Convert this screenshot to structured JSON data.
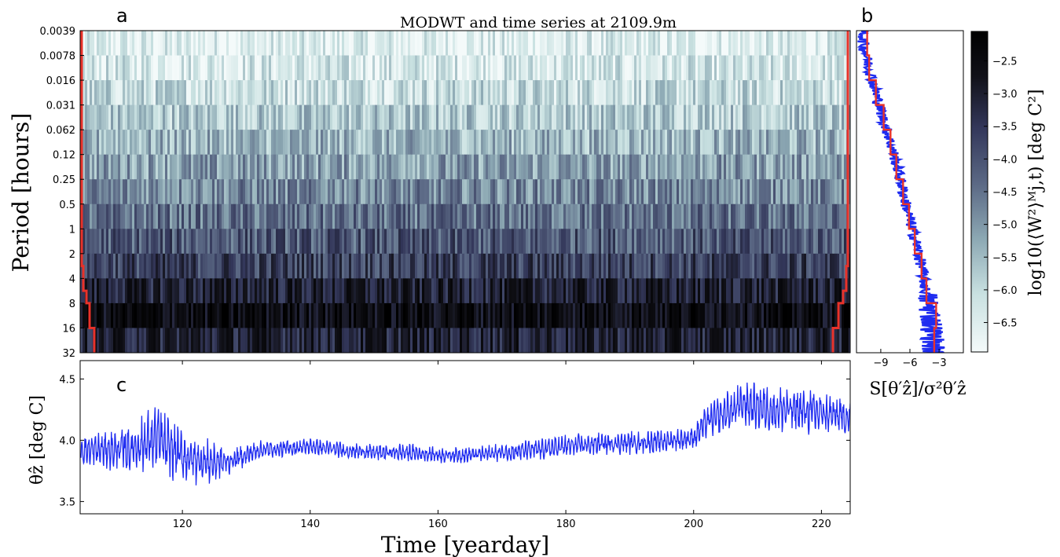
{
  "figure": {
    "title": "MODWT and time series at 2109.9m",
    "panel_labels": [
      "a",
      "b",
      "c"
    ]
  },
  "chart_data": [
    {
      "panel": "a",
      "type": "heatmap",
      "title": "MODWT and time series at 2109.9m",
      "ylabel": "Period [hours]",
      "yticks": [
        "0.0039",
        "0.0078",
        "0.016",
        "0.031",
        "0.062",
        "0.12",
        "0.25",
        "0.5",
        "1",
        "2",
        "4",
        "8",
        "16",
        "32"
      ],
      "xlim": [
        104,
        224.5
      ],
      "band_mean_log_power": [
        -6.6,
        -6.4,
        -6.1,
        -5.8,
        -5.5,
        -5.2,
        -4.9,
        -4.6,
        -4.2,
        -3.8,
        -3.2,
        -2.6,
        -3.2
      ],
      "cone_of_influence_color": "#e8322a",
      "colormap": [
        "#f4fafa",
        "#c9e1e1",
        "#8da9b4",
        "#5c6a86",
        "#33375a",
        "#111118",
        "#000000"
      ]
    },
    {
      "panel": "b",
      "type": "line",
      "xlabel": "S[θ′ẑ]/σ²θ′ẑ",
      "xticks": [
        "-9",
        "-6",
        "-3"
      ],
      "xlim": [
        -11.5,
        -0.5
      ],
      "series": [
        {
          "color": "#1f2cf0",
          "x_at_band": [
            -10.8,
            -10.2,
            -9.5,
            -8.8,
            -8.0,
            -7.3,
            -6.7,
            -6.1,
            -5.4,
            -4.8,
            -4.4,
            -3.8,
            -3.6
          ]
        },
        {
          "color": "#e8322a",
          "x_steps": [
            -10.4,
            -10.2,
            -9.5,
            -8.7,
            -8.0,
            -7.4,
            -6.7,
            -6.1,
            -5.5,
            -4.8,
            -4.3,
            -3.3,
            -3.5
          ]
        }
      ]
    },
    {
      "panel": "b-colorbar",
      "type": "heatmap",
      "ylabel": "log10(⟨W²⟩ᴹj,t) [deg C²]",
      "yticks": [
        "-2.5",
        "-3.0",
        "-3.5",
        "-4.0",
        "-4.5",
        "-5.0",
        "-5.5",
        "-6.0",
        "-6.5"
      ],
      "ylim": [
        -6.95,
        -2.05
      ]
    },
    {
      "panel": "c",
      "type": "line",
      "xlabel": "Time [yearday]",
      "ylabel": "θẑ [deg C]",
      "xticks": [
        "120",
        "140",
        "160",
        "180",
        "200",
        "220"
      ],
      "yticks": [
        "3.5",
        "4.0",
        "4.5"
      ],
      "xlim": [
        104,
        224.5
      ],
      "ylim": [
        3.4,
        4.65
      ],
      "series": [
        {
          "color": "#1f2cf0",
          "anchor_x": [
            104,
            108,
            112,
            116,
            118,
            121,
            124,
            127,
            132,
            136,
            140,
            145,
            150,
            155,
            160,
            165,
            170,
            175,
            180,
            185,
            190,
            195,
            200,
            202,
            205,
            208,
            212,
            216,
            220,
            224.5
          ],
          "anchor_mean": [
            3.92,
            3.92,
            3.93,
            4.02,
            3.93,
            3.85,
            3.82,
            3.82,
            3.92,
            3.93,
            3.95,
            3.92,
            3.9,
            3.9,
            3.88,
            3.88,
            3.9,
            3.92,
            3.95,
            3.97,
            3.98,
            3.99,
            4.02,
            4.15,
            4.22,
            4.3,
            4.25,
            4.25,
            4.22,
            4.18
          ],
          "anchor_amp": [
            0.13,
            0.16,
            0.22,
            0.3,
            0.26,
            0.22,
            0.2,
            0.12,
            0.08,
            0.08,
            0.07,
            0.07,
            0.07,
            0.08,
            0.07,
            0.07,
            0.08,
            0.09,
            0.1,
            0.1,
            0.1,
            0.1,
            0.1,
            0.14,
            0.18,
            0.2,
            0.2,
            0.2,
            0.2,
            0.16
          ]
        }
      ]
    }
  ]
}
